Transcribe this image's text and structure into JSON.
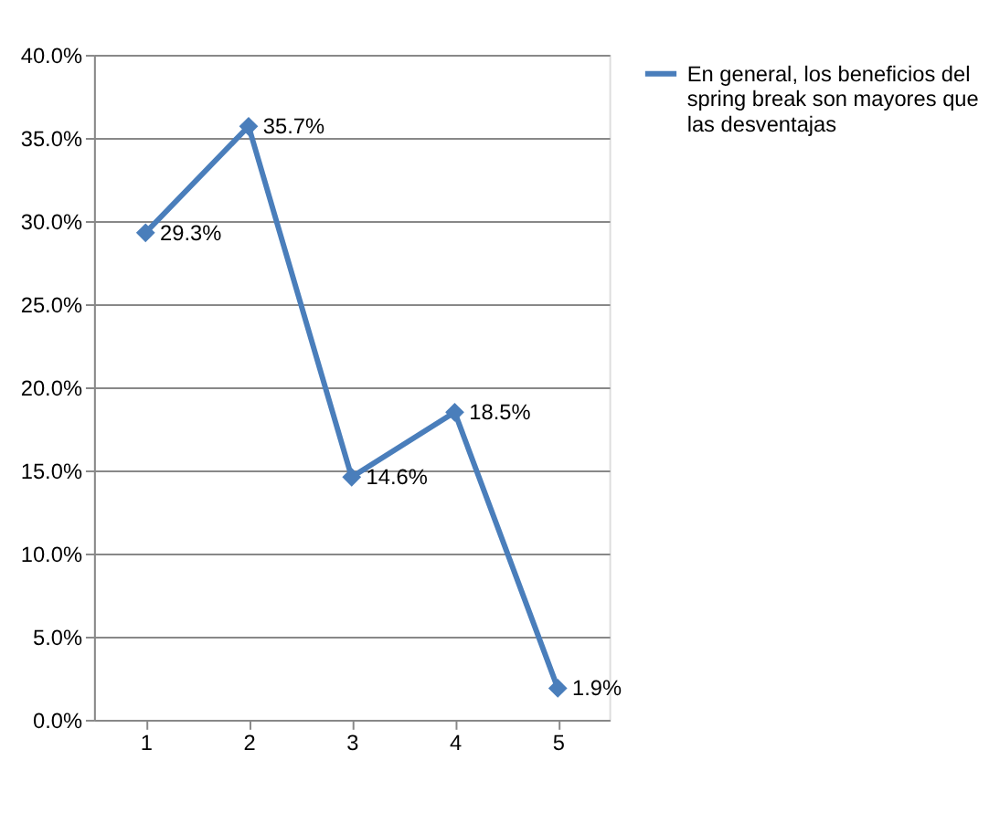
{
  "chart_data": {
    "type": "line",
    "categories": [
      "1",
      "2",
      "3",
      "4",
      "5"
    ],
    "series": [
      {
        "name": "En general, los beneficios del spring break son mayores que las desventajas",
        "color": "#4a7ebb",
        "values": [
          29.3,
          35.7,
          14.6,
          18.5,
          1.9
        ],
        "value_labels": [
          "29.3%",
          "35.7%",
          "14.6%",
          "18.5%",
          "1.9%"
        ]
      }
    ],
    "ylim": [
      0,
      40
    ],
    "yticks": [
      {
        "value": 0,
        "label": "0.0%"
      },
      {
        "value": 5,
        "label": "5.0%"
      },
      {
        "value": 10,
        "label": "10.0%"
      },
      {
        "value": 15,
        "label": "15.0%"
      },
      {
        "value": 20,
        "label": "20.0%"
      },
      {
        "value": 25,
        "label": "25.0%"
      },
      {
        "value": 30,
        "label": "30.0%"
      },
      {
        "value": 35,
        "label": "35.0%"
      },
      {
        "value": 40,
        "label": "40.0%"
      }
    ],
    "grid": "y",
    "legend": "right",
    "marker": "diamond",
    "line_style": "solid"
  }
}
